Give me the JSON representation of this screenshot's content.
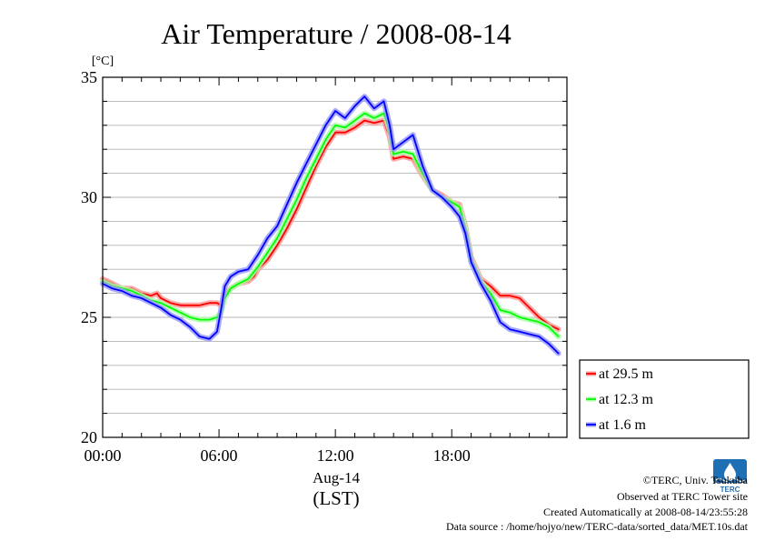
{
  "chart_data": {
    "type": "line",
    "title": "Air Temperature / 2008-08-14",
    "ylabel": "[°C]",
    "xlabel_date": "Aug-14",
    "xlabel_zone": "(LST)",
    "xlim_hours": [
      0,
      23.5
    ],
    "ylim": [
      20,
      35
    ],
    "yticks": [
      "20",
      "25",
      "30",
      "35"
    ],
    "xticks": [
      {
        "hour": 0,
        "label": "00:00"
      },
      {
        "hour": 6,
        "label": "06:00"
      },
      {
        "hour": 12,
        "label": "12:00"
      },
      {
        "hour": 18,
        "label": "18:00"
      }
    ],
    "grid": true,
    "legend_placement": "bottom-right outside",
    "series": [
      {
        "name": "at 29.5 m",
        "color": "#ff0000",
        "glow": "#ff9a9a",
        "points": [
          [
            0.0,
            26.6
          ],
          [
            0.5,
            26.4
          ],
          [
            1.0,
            26.2
          ],
          [
            1.5,
            26.2
          ],
          [
            2.0,
            26.0
          ],
          [
            2.5,
            25.9
          ],
          [
            2.8,
            26.0
          ],
          [
            3.0,
            25.8
          ],
          [
            3.5,
            25.6
          ],
          [
            4.0,
            25.5
          ],
          [
            4.5,
            25.5
          ],
          [
            5.0,
            25.5
          ],
          [
            5.5,
            25.6
          ],
          [
            5.9,
            25.6
          ],
          [
            6.1,
            25.5
          ],
          [
            6.3,
            26.0
          ],
          [
            6.6,
            26.2
          ],
          [
            7.0,
            26.4
          ],
          [
            7.5,
            26.5
          ],
          [
            7.8,
            26.7
          ],
          [
            8.0,
            27.0
          ],
          [
            8.5,
            27.4
          ],
          [
            9.0,
            28.0
          ],
          [
            9.5,
            28.7
          ],
          [
            10.0,
            29.5
          ],
          [
            10.5,
            30.4
          ],
          [
            11.0,
            31.3
          ],
          [
            11.5,
            32.1
          ],
          [
            12.0,
            32.7
          ],
          [
            12.5,
            32.7
          ],
          [
            13.0,
            32.9
          ],
          [
            13.5,
            33.2
          ],
          [
            14.0,
            33.1
          ],
          [
            14.5,
            33.2
          ],
          [
            14.8,
            32.5
          ],
          [
            15.0,
            31.6
          ],
          [
            15.5,
            31.7
          ],
          [
            16.0,
            31.6
          ],
          [
            16.5,
            30.9
          ],
          [
            17.0,
            30.3
          ],
          [
            17.5,
            30.1
          ],
          [
            18.0,
            29.8
          ],
          [
            18.4,
            29.7
          ],
          [
            18.7,
            28.8
          ],
          [
            19.0,
            27.5
          ],
          [
            19.5,
            26.6
          ],
          [
            20.0,
            26.3
          ],
          [
            20.5,
            25.9
          ],
          [
            21.0,
            25.9
          ],
          [
            21.5,
            25.8
          ],
          [
            22.0,
            25.4
          ],
          [
            22.5,
            25.0
          ],
          [
            23.0,
            24.7
          ],
          [
            23.5,
            24.5
          ]
        ]
      },
      {
        "name": "at 12.3 m",
        "color": "#00ff00",
        "glow": "#a8ffa8",
        "points": [
          [
            0.0,
            26.5
          ],
          [
            0.5,
            26.3
          ],
          [
            1.0,
            26.2
          ],
          [
            1.5,
            26.1
          ],
          [
            2.0,
            25.9
          ],
          [
            2.5,
            25.7
          ],
          [
            3.0,
            25.6
          ],
          [
            3.5,
            25.4
          ],
          [
            4.0,
            25.2
          ],
          [
            4.5,
            25.0
          ],
          [
            5.0,
            24.9
          ],
          [
            5.5,
            24.9
          ],
          [
            5.9,
            25.0
          ],
          [
            6.1,
            25.2
          ],
          [
            6.3,
            25.8
          ],
          [
            6.6,
            26.2
          ],
          [
            7.0,
            26.4
          ],
          [
            7.5,
            26.6
          ],
          [
            8.0,
            27.1
          ],
          [
            8.5,
            27.7
          ],
          [
            9.0,
            28.3
          ],
          [
            9.5,
            29.1
          ],
          [
            10.0,
            29.9
          ],
          [
            10.5,
            30.8
          ],
          [
            11.0,
            31.6
          ],
          [
            11.5,
            32.4
          ],
          [
            12.0,
            33.0
          ],
          [
            12.5,
            32.9
          ],
          [
            13.0,
            33.2
          ],
          [
            13.5,
            33.5
          ],
          [
            14.0,
            33.3
          ],
          [
            14.5,
            33.5
          ],
          [
            14.8,
            32.8
          ],
          [
            15.0,
            31.8
          ],
          [
            15.5,
            31.9
          ],
          [
            16.0,
            31.8
          ],
          [
            16.5,
            31.0
          ],
          [
            17.0,
            30.3
          ],
          [
            17.5,
            30.0
          ],
          [
            18.0,
            29.8
          ],
          [
            18.4,
            29.6
          ],
          [
            18.7,
            28.7
          ],
          [
            19.0,
            27.4
          ],
          [
            19.5,
            26.5
          ],
          [
            20.0,
            26.0
          ],
          [
            20.5,
            25.3
          ],
          [
            21.0,
            25.2
          ],
          [
            21.5,
            25.0
          ],
          [
            22.0,
            24.9
          ],
          [
            22.5,
            24.8
          ],
          [
            23.0,
            24.6
          ],
          [
            23.5,
            24.2
          ]
        ]
      },
      {
        "name": "at 1.6 m",
        "color": "#0000ff",
        "glow": "#9a9aff",
        "points": [
          [
            0.0,
            26.4
          ],
          [
            0.5,
            26.2
          ],
          [
            1.0,
            26.1
          ],
          [
            1.5,
            25.9
          ],
          [
            2.0,
            25.8
          ],
          [
            2.5,
            25.6
          ],
          [
            3.0,
            25.4
          ],
          [
            3.5,
            25.1
          ],
          [
            4.0,
            24.9
          ],
          [
            4.5,
            24.6
          ],
          [
            5.0,
            24.2
          ],
          [
            5.5,
            24.1
          ],
          [
            5.9,
            24.4
          ],
          [
            6.1,
            25.3
          ],
          [
            6.3,
            26.3
          ],
          [
            6.6,
            26.7
          ],
          [
            7.0,
            26.9
          ],
          [
            7.5,
            27.0
          ],
          [
            8.0,
            27.6
          ],
          [
            8.5,
            28.3
          ],
          [
            9.0,
            28.8
          ],
          [
            9.5,
            29.7
          ],
          [
            10.0,
            30.6
          ],
          [
            10.5,
            31.4
          ],
          [
            11.0,
            32.2
          ],
          [
            11.5,
            33.0
          ],
          [
            12.0,
            33.6
          ],
          [
            12.5,
            33.3
          ],
          [
            13.0,
            33.8
          ],
          [
            13.5,
            34.2
          ],
          [
            14.0,
            33.7
          ],
          [
            14.5,
            34.0
          ],
          [
            14.8,
            33.0
          ],
          [
            15.0,
            32.0
          ],
          [
            15.5,
            32.3
          ],
          [
            16.0,
            32.6
          ],
          [
            16.5,
            31.3
          ],
          [
            17.0,
            30.3
          ],
          [
            17.5,
            30.0
          ],
          [
            18.0,
            29.6
          ],
          [
            18.4,
            29.2
          ],
          [
            18.7,
            28.5
          ],
          [
            19.0,
            27.3
          ],
          [
            19.5,
            26.4
          ],
          [
            20.0,
            25.7
          ],
          [
            20.5,
            24.8
          ],
          [
            21.0,
            24.5
          ],
          [
            21.5,
            24.4
          ],
          [
            22.0,
            24.3
          ],
          [
            22.5,
            24.2
          ],
          [
            23.0,
            23.9
          ],
          [
            23.5,
            23.5
          ]
        ]
      }
    ]
  },
  "footer": {
    "copyright": "©TERC, Univ. Tsukuba",
    "observed": "Observed at TERC Tower site",
    "created": "Created Automatically at 2008-08-14/23:55:28",
    "source": "Data source : /home/hojyo/new/TERC-data/sorted_data/MET.10s.dat"
  },
  "logo": {
    "text": "TERC",
    "color": "#1f6fb5"
  }
}
